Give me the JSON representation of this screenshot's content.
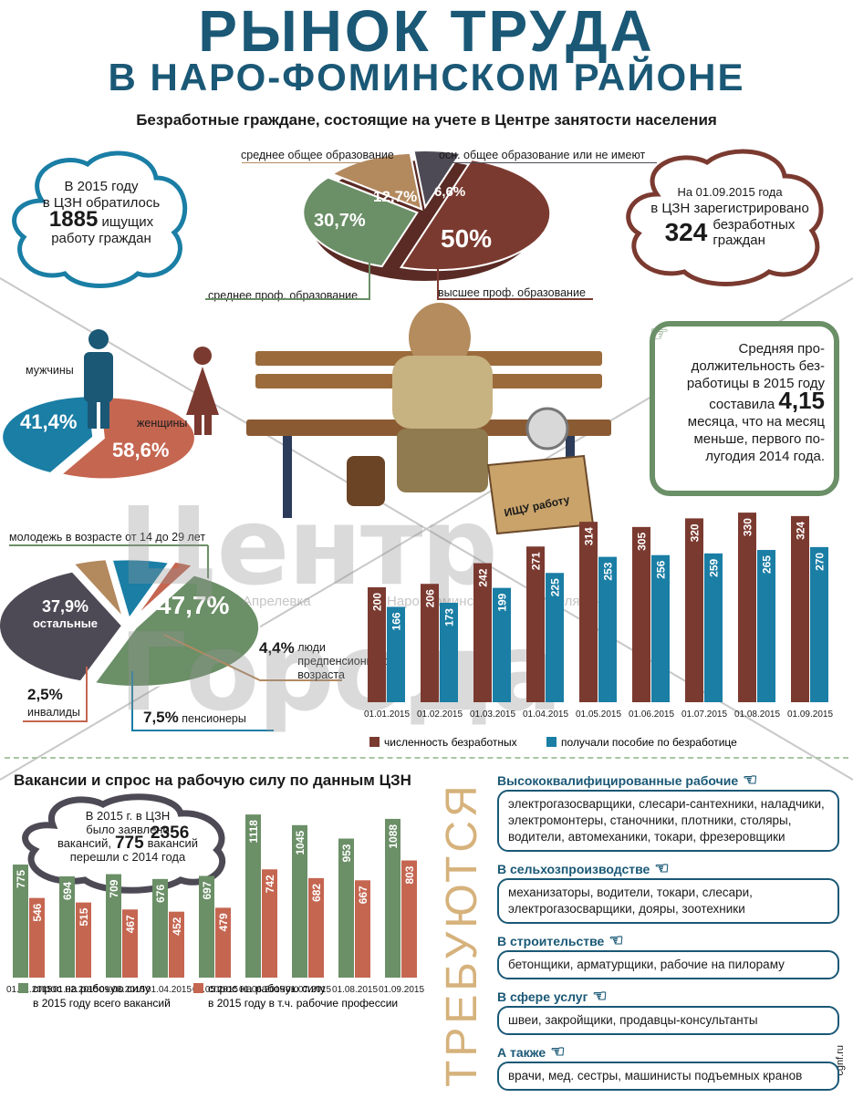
{
  "header": {
    "title_line1": "РЫНОК ТРУДА",
    "title_line2": "В НАРО-ФОМИНСКОМ РАЙОНЕ",
    "subtitle": "Безработные граждане, состоящие на учете в Центре занятости населения"
  },
  "left_cloud": {
    "l1": "В 2015 году",
    "l2": "в ЦЗН обратилось",
    "num": "1885",
    "l3": "ищущих",
    "l4": "работу граждан"
  },
  "right_cloud": {
    "l1": "На 01.09.2015 года",
    "l2": "в ЦЗН зарегистрировано",
    "num": "324",
    "l3": "безработных",
    "l4": "граждан"
  },
  "duration_box": {
    "t1": "Средняя про-",
    "t2": "должительность без-",
    "t3": "работицы в 2015 году",
    "t4": "составила",
    "num": "4,15",
    "t5": "месяца, что на месяц",
    "t6": "меньше, первого по-",
    "t7": "лугодия 2014 года."
  },
  "bench": {
    "box_text": "ИЩУ работу"
  },
  "watermark": {
    "main": "Центр Города",
    "towns": [
      "Апрелевка",
      "Наро-Фоминск",
      "Селятино"
    ],
    "site": "cgnf.ru"
  },
  "vacancies": {
    "heading": "Вакансии и спрос на рабочую силу по данным ЦЗН",
    "cloud": {
      "l1": "В 2015 г. в ЦЗН",
      "l2": "было заявлено",
      "num1": "2356",
      "l3": "вакансий,",
      "num2": "775",
      "l4": "вакансий",
      "l5": "перешли с 2014 года"
    },
    "needed_word": "ТРЕБУЮТСЯ",
    "categories": [
      {
        "head": "Высококвалифицированные рабочие",
        "text": "электрогазосварщики, слесари-сантехники, наладчики, электромонтеры, станочники, плотники, столяры, водители, автомеханики, токари, фрезеровщики"
      },
      {
        "head": "В сельхозпроизводстве",
        "text": "механизаторы, водители, токари, слесари, электрогазосварщики, дояры, зоотехники"
      },
      {
        "head": "В строительстве",
        "text": "бетонщики, арматурщики, рабочие на пилораму"
      },
      {
        "head": "В сфере услуг",
        "text": "швеи, закройщики, продавцы-консультанты"
      },
      {
        "head": "А также",
        "text": "врачи, мед. сестры, машинисты подъемных кранов"
      }
    ]
  },
  "colors": {
    "brown": "#7b3a30",
    "teal": "#1a7ea5",
    "green": "#6b8f67",
    "salmon": "#c56651",
    "dark": "#4d4a55",
    "tan": "#b3895e",
    "navy": "#1a5876"
  },
  "chart_data": [
    {
      "type": "pie",
      "title": "",
      "labels": [
        "высшее проф. образование",
        "среднее проф. образование",
        "среднее общее образование",
        "осн. общее образование или не имеют"
      ],
      "values": [
        50,
        30.7,
        12.7,
        6.6
      ],
      "value_labels": [
        "50%",
        "30,7%",
        "12,7%",
        "6,6%"
      ]
    },
    {
      "type": "pie",
      "labels": [
        "мужчины",
        "женщины"
      ],
      "values": [
        41.4,
        58.6
      ],
      "value_labels": [
        "41,4%",
        "58,6%"
      ]
    },
    {
      "type": "pie",
      "labels": [
        "молодежь в возрасте от 14 до 29 лет",
        "остальные",
        "люди предпенсионного возраста",
        "пенсионеры",
        "инвалиды"
      ],
      "values": [
        47.7,
        37.9,
        4.4,
        7.5,
        2.5
      ],
      "value_labels": [
        "47,7%",
        "37,9%",
        "4,4%",
        "7,5%",
        "2,5%"
      ]
    },
    {
      "type": "bar",
      "categories": [
        "01.01.2015",
        "01.02.2015",
        "01.03.2015",
        "01.04.2015",
        "01.05.2015",
        "01.06.2015",
        "01.07.2015",
        "01.08.2015",
        "01.09.2015"
      ],
      "series": [
        {
          "name": "численность безработных",
          "values": [
            200,
            206,
            242,
            271,
            314,
            305,
            320,
            330,
            324
          ]
        },
        {
          "name": "получали пособие по безработице",
          "values": [
            166,
            173,
            199,
            225,
            253,
            256,
            259,
            265,
            270
          ]
        }
      ]
    },
    {
      "type": "bar",
      "categories": [
        "01.01.2015",
        "01.02.2015",
        "01.03.2015",
        "01.04.2015",
        "01.05.2015",
        "01.06.2015",
        "01.07.2015",
        "01.08.2015",
        "01.09.2015"
      ],
      "series": [
        {
          "name": "спрос на рабочую силу в 2015 году всего вакансий",
          "values": [
            775,
            694,
            709,
            676,
            697,
            1118,
            1045,
            953,
            1088
          ]
        },
        {
          "name": "спрос на рабочую силу в 2015 году в т.ч. рабочие профессии",
          "values": [
            546,
            515,
            467,
            452,
            479,
            742,
            682,
            667,
            803
          ]
        }
      ]
    }
  ]
}
